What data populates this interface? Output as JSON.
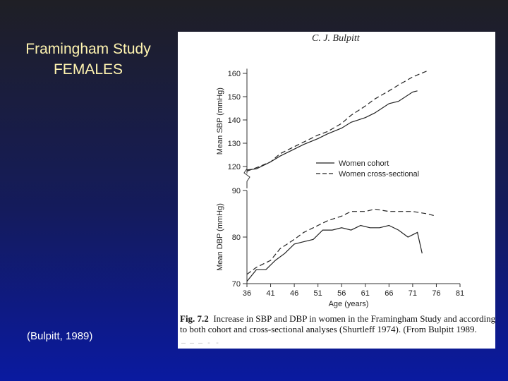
{
  "slide": {
    "title_line1": "Framingham Study",
    "title_line2": "FEMALES",
    "citation": "(Bulpitt, 1989)"
  },
  "figure": {
    "author": "C. J. Bulpitt",
    "caption_label": "Fig. 7.2",
    "caption_line1": "Increase in SBP and DBP in women in the Framingham Study and according",
    "caption_line2": "to both cohort and cross-sectional analyses (Shurtleff 1974). (From Bulpitt 1989.",
    "footer_marks": "— — — - -"
  },
  "chart_data": [
    {
      "type": "line",
      "title": "",
      "ylabel": "Mean SBP (mmHg)",
      "ylim": [
        117,
        162
      ],
      "yticks": [
        120,
        130,
        140,
        150,
        160
      ],
      "ytick_labels": [
        "120",
        "130",
        "140",
        "150",
        "160"
      ],
      "legend": "right",
      "series": [
        {
          "name": "Women cohort",
          "style": "solid",
          "x": [
            36,
            38,
            41,
            43,
            46,
            48,
            51,
            53,
            56,
            58,
            61,
            63,
            66,
            68,
            71,
            72
          ],
          "values": [
            118.5,
            119,
            122,
            124.5,
            127.5,
            129.5,
            132,
            134,
            136.5,
            139,
            141,
            143,
            147,
            148,
            152,
            152.5
          ]
        },
        {
          "name": "Women cross-sectional",
          "style": "dashed",
          "x": [
            36,
            38,
            41,
            43,
            46,
            48,
            51,
            53,
            56,
            58,
            61,
            63,
            66,
            68,
            71,
            74
          ],
          "values": [
            118,
            119.5,
            122,
            125.5,
            128.5,
            130.5,
            133.5,
            135,
            138.5,
            142,
            146,
            149,
            152.5,
            155,
            158.5,
            161
          ]
        }
      ]
    },
    {
      "type": "line",
      "title": "",
      "xlabel": "Age (years)",
      "ylabel": "Mean DBP (mmHg)",
      "ylim": [
        70,
        90
      ],
      "yticks": [
        70,
        80,
        90
      ],
      "ytick_labels": [
        "70",
        "80",
        "90"
      ],
      "xlim": [
        36,
        81
      ],
      "xticks": [
        36,
        41,
        46,
        51,
        56,
        61,
        66,
        71,
        76,
        81
      ],
      "xtick_labels": [
        "36",
        "41",
        "46",
        "51",
        "56",
        "61",
        "66",
        "71",
        "76",
        "81"
      ],
      "series": [
        {
          "name": "Women cohort",
          "style": "solid",
          "x": [
            36,
            38,
            40,
            42,
            44,
            46,
            48,
            50,
            52,
            54,
            56,
            58,
            60,
            62,
            64,
            66,
            68,
            70,
            72,
            73
          ],
          "values": [
            70.5,
            73,
            73,
            75,
            76.5,
            78.5,
            79,
            79.5,
            81.5,
            81.5,
            82,
            81.5,
            82.5,
            82,
            82,
            82.5,
            81.5,
            80,
            81,
            76.5
          ]
        },
        {
          "name": "Women cross-sectional",
          "style": "dashed",
          "x": [
            36,
            38,
            41,
            43,
            46,
            48,
            51,
            53,
            56,
            58,
            61,
            63,
            66,
            68,
            71,
            74,
            76
          ],
          "values": [
            72,
            73.5,
            75,
            77.5,
            79.5,
            81,
            82.5,
            83.5,
            84.5,
            85.5,
            85.5,
            86,
            85.5,
            85.5,
            85.5,
            85,
            84.5
          ]
        }
      ]
    }
  ]
}
